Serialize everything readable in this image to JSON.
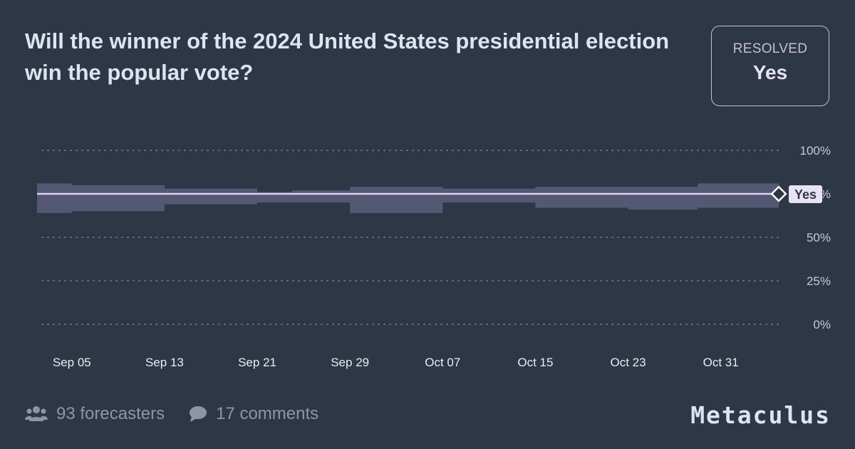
{
  "question": {
    "title": "Will the winner of the 2024 United States presidential election win the popular vote?"
  },
  "status": {
    "label": "RESOLVED",
    "value": "Yes"
  },
  "chart_data": {
    "type": "line",
    "title": "",
    "xlabel": "",
    "ylabel": "",
    "ylim": [
      0,
      100
    ],
    "y_ticks": [
      "100%",
      "75%",
      "50%",
      "25%",
      "0%"
    ],
    "x_ticks": [
      "Sep 05",
      "Sep 13",
      "Sep 21",
      "Sep 29",
      "Oct 07",
      "Oct 15",
      "Oct 23",
      "Oct 31"
    ],
    "x_range": [
      "2024-09-02",
      "2024-11-05"
    ],
    "grid": true,
    "resolution_label": "Yes",
    "series": [
      {
        "x": [
          "2024-09-02",
          "2024-11-05"
        ],
        "values": [
          75,
          75
        ]
      }
    ],
    "band_upper": [
      {
        "x": "2024-09-02",
        "v": 81
      },
      {
        "x": "2024-09-05",
        "v": 80
      },
      {
        "x": "2024-09-13",
        "v": 78
      },
      {
        "x": "2024-09-21",
        "v": 76
      },
      {
        "x": "2024-09-24",
        "v": 77
      },
      {
        "x": "2024-09-29",
        "v": 79
      },
      {
        "x": "2024-10-07",
        "v": 78
      },
      {
        "x": "2024-10-15",
        "v": 79
      },
      {
        "x": "2024-10-23",
        "v": 79
      },
      {
        "x": "2024-10-29",
        "v": 81
      },
      {
        "x": "2024-11-05",
        "v": 80
      }
    ],
    "band_lower": [
      {
        "x": "2024-09-02",
        "v": 64
      },
      {
        "x": "2024-09-05",
        "v": 65
      },
      {
        "x": "2024-09-13",
        "v": 69
      },
      {
        "x": "2024-09-21",
        "v": 70
      },
      {
        "x": "2024-09-29",
        "v": 64
      },
      {
        "x": "2024-10-07",
        "v": 70
      },
      {
        "x": "2024-10-15",
        "v": 67
      },
      {
        "x": "2024-10-23",
        "v": 66
      },
      {
        "x": "2024-10-29",
        "v": 67
      },
      {
        "x": "2024-11-05",
        "v": 66
      }
    ]
  },
  "colors": {
    "background": "#2d3746",
    "line": "#d9d1ee",
    "band": "#5a5c78",
    "grid": "#8b95a3",
    "tick_text": "#c3ccd7",
    "x_tick_text": "#e6edf5",
    "marker_fill": "#2d3746"
  },
  "footer": {
    "forecasters": "93 forecasters",
    "comments": "17 comments",
    "people_icon": "people-icon",
    "comment_icon": "comment-icon"
  },
  "brand": "Metaculus"
}
